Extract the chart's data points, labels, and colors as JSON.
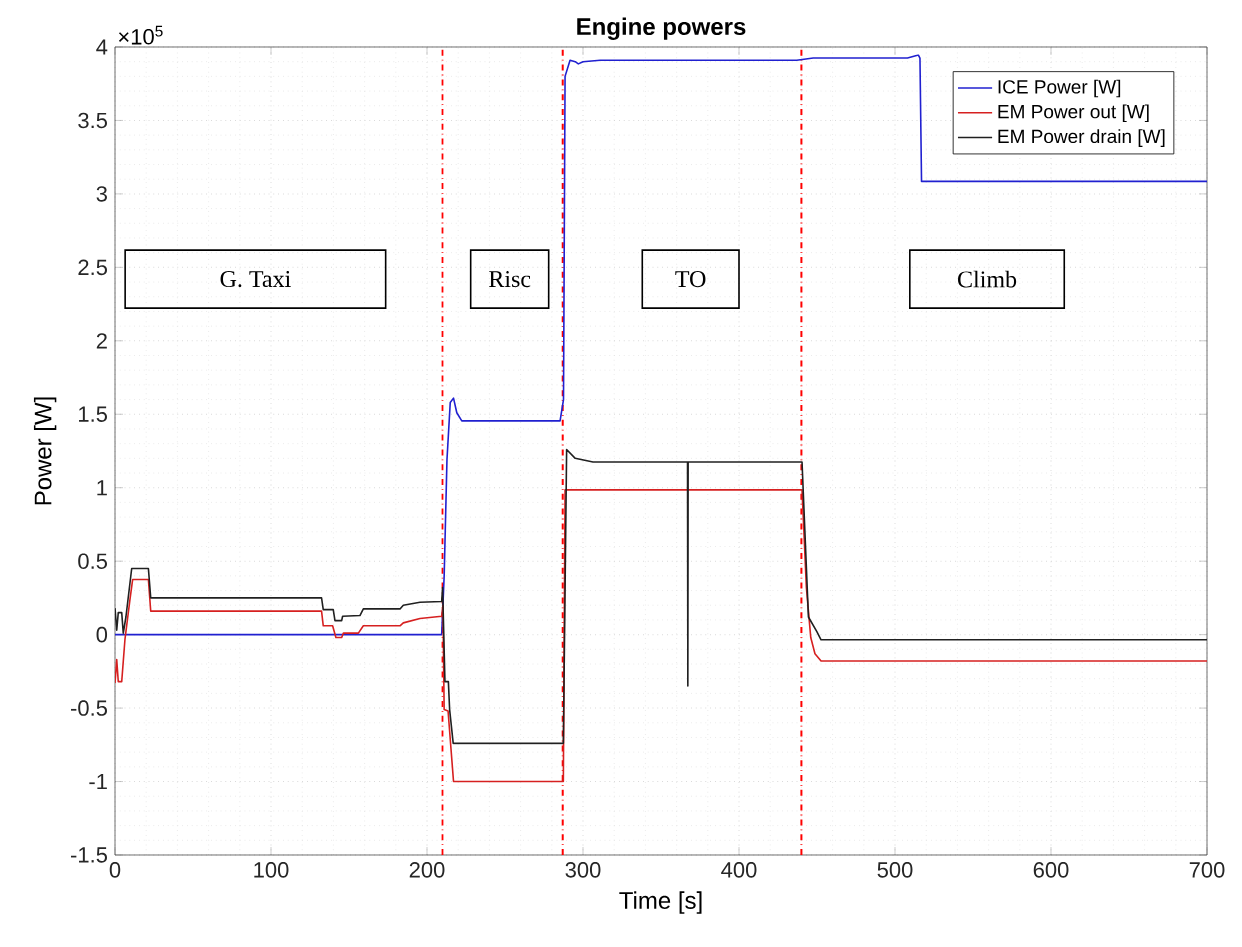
{
  "chart_data": {
    "type": "line",
    "title": "Engine powers",
    "xlabel": "Time [s]",
    "ylabel": "Power [W]",
    "xlim": [
      0,
      700
    ],
    "xticks": [
      0,
      100,
      200,
      300,
      400,
      500,
      600,
      700
    ],
    "ylim": [
      -1.5,
      4
    ],
    "yticks": [
      -1.5,
      -1,
      -0.5,
      0,
      0.5,
      1,
      1.5,
      2,
      2.5,
      3,
      3.5,
      4
    ],
    "grid": true,
    "legend": "top right",
    "marker": "none",
    "line_style": "solid",
    "annotations": [
      "×10$^{5}$",
      "G. Taxi",
      "Risc",
      "TO",
      "Climb"
    ],
    "ref_lines": [
      {
        "axis": "x",
        "value": 210,
        "color": "#ff0000",
        "line_style": "dashdot"
      },
      {
        "axis": "x",
        "value": 287,
        "color": "#ff0000",
        "line_style": "dashdot"
      },
      {
        "axis": "x",
        "value": 440,
        "color": "#ff0000",
        "line_style": "dashdot"
      }
    ],
    "series": [
      {
        "name": "ICE Power [W]",
        "color": "#2020d0",
        "x": [
          0,
          209.4,
          211,
          212.8,
          214.9,
          217,
          219.1,
          222.3,
          285.3,
          287.5,
          288.5,
          291.7,
          295,
          297,
          300,
          311,
          437,
          447.6,
          508,
          515,
          516,
          517,
          700
        ],
        "values": [
          0,
          0,
          0.4,
          1.19,
          1.58,
          1.61,
          1.51,
          1.455,
          1.455,
          1.6,
          3.8,
          3.91,
          3.9,
          3.885,
          3.9,
          3.91,
          3.91,
          3.925,
          3.925,
          3.945,
          3.925,
          3.085,
          3.085
        ]
      },
      {
        "name": "EM Power out [W]",
        "color": "#d62020",
        "x": [
          0,
          1.1,
          2.1,
          4.3,
          6.4,
          9.6,
          11.3,
          21.4,
          22.9,
          132.4,
          133.5,
          139.5,
          141.6,
          145.3,
          146.4,
          156,
          159.2,
          182.7,
          184.8,
          195.5,
          209.4,
          210.2,
          211,
          213.5,
          217,
          287.4,
          288.5,
          440.4,
          443.2,
          446,
          448.7,
          452.6,
          700
        ],
        "values": [
          -0.33,
          -0.17,
          -0.32,
          -0.32,
          -0.03,
          0.24,
          0.375,
          0.375,
          0.16,
          0.16,
          0.06,
          0.06,
          -0.02,
          -0.02,
          0.01,
          0.01,
          0.06,
          0.06,
          0.08,
          0.11,
          0.125,
          0.2,
          -0.51,
          -0.52,
          -1.0,
          -1.0,
          0.985,
          0.985,
          0.32,
          -0.02,
          -0.13,
          -0.18,
          -0.18
        ]
      },
      {
        "name": "EM Power drain [W]",
        "color": "#202020",
        "x": [
          0,
          1.1,
          2.1,
          4.3,
          5.3,
          7,
          10.7,
          21.4,
          22.9,
          132.4,
          133.5,
          139.9,
          141,
          145.3,
          145.9,
          157,
          159.2,
          182.7,
          184.8,
          195.5,
          209.4,
          210,
          211.5,
          213.7,
          214.5,
          216.8,
          287.4,
          289.5,
          295,
          306.4,
          367,
          367.2,
          367.4,
          440.4,
          444.5,
          449.9,
          452.6,
          700
        ],
        "values": [
          0.18,
          0.03,
          0.15,
          0.15,
          0.01,
          0.12,
          0.45,
          0.45,
          0.25,
          0.25,
          0.17,
          0.17,
          0.095,
          0.095,
          0.125,
          0.13,
          0.175,
          0.175,
          0.2,
          0.22,
          0.225,
          0.32,
          -0.32,
          -0.32,
          -0.51,
          -0.74,
          -0.74,
          1.26,
          1.2,
          1.175,
          1.175,
          -0.35,
          1.175,
          1.175,
          0.12,
          0.02,
          -0.035,
          -0.035
        ]
      }
    ]
  }
}
